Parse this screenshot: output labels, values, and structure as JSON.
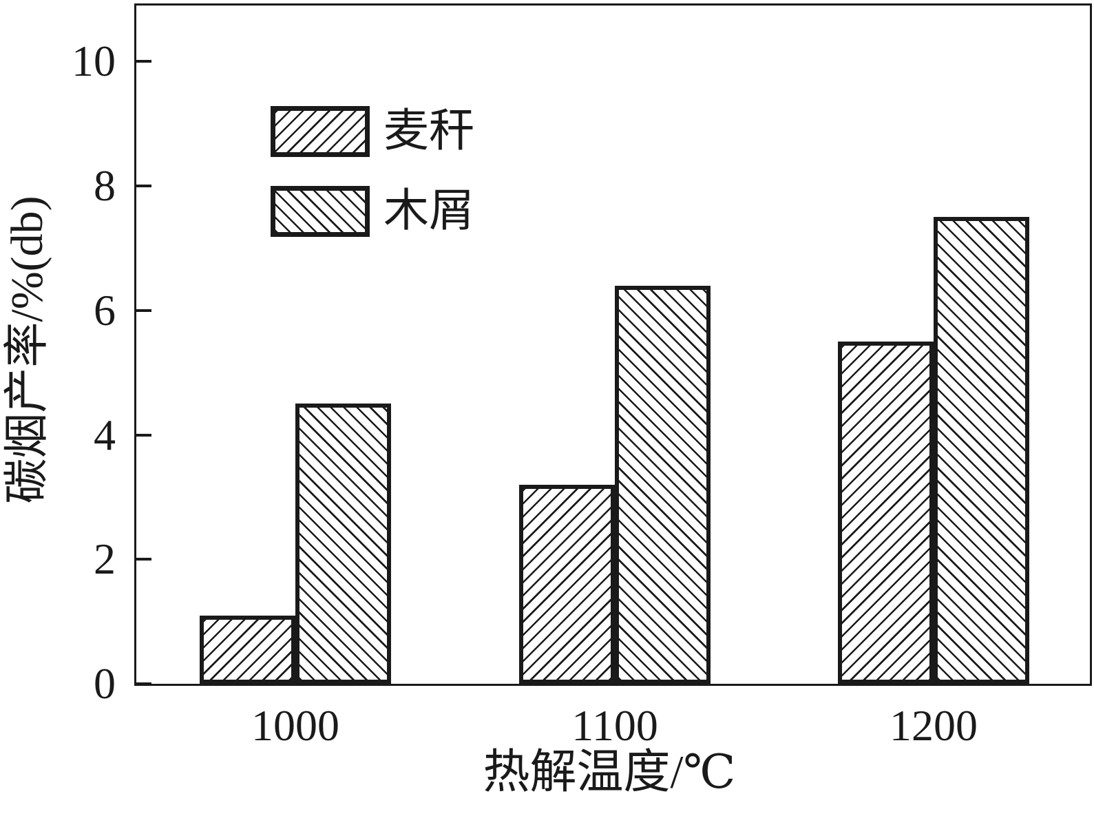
{
  "figure": {
    "background": "#ffffff",
    "ink_color": "#1a1a1a"
  },
  "chart_data": {
    "type": "bar",
    "title": "",
    "categories": [
      "1000",
      "1100",
      "1200"
    ],
    "series": [
      {
        "id": "wheat-straw",
        "name": "麦秆",
        "hatch": "forward-diagonal",
        "values": [
          1.1,
          3.2,
          5.5
        ]
      },
      {
        "id": "sawdust",
        "name": "木屑",
        "hatch": "back-diagonal",
        "values": [
          4.5,
          6.4,
          7.5
        ]
      }
    ],
    "xlabel": "热解温度/℃",
    "ylabel": "碳烟产率/%(db)",
    "ylim": [
      0,
      10.9
    ],
    "yticks": [
      0,
      2,
      4,
      6,
      8,
      10
    ],
    "legend_position": "upper-left-inside",
    "grid": false,
    "bar_fill": "#ffffff",
    "bar_edge": "#1a1a1a"
  }
}
